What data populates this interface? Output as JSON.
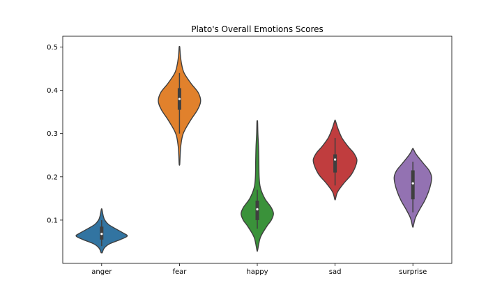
{
  "chart_data": {
    "type": "violin",
    "title": "Plato's Overall Emotions Scores",
    "xlabel": "",
    "ylabel": "",
    "categories": [
      "anger",
      "fear",
      "happy",
      "sad",
      "surprise"
    ],
    "ylim": [
      0.0,
      0.525
    ],
    "yticks": [
      0.1,
      0.2,
      0.3,
      0.4,
      0.5
    ],
    "grid": false,
    "colors": [
      "#3274a1",
      "#e1812c",
      "#3a923a",
      "#c03d3e",
      "#9372b2"
    ],
    "series": [
      {
        "category": "anger",
        "min": 0.025,
        "q1": 0.055,
        "median": 0.068,
        "q3": 0.085,
        "max": 0.125,
        "whisker_low": 0.04,
        "whisker_high": 0.1,
        "density": [
          [
            0.025,
            0.02
          ],
          [
            0.035,
            0.08
          ],
          [
            0.045,
            0.25
          ],
          [
            0.055,
            0.6
          ],
          [
            0.063,
            0.82
          ],
          [
            0.07,
            0.7
          ],
          [
            0.08,
            0.45
          ],
          [
            0.09,
            0.22
          ],
          [
            0.1,
            0.1
          ],
          [
            0.11,
            0.05
          ],
          [
            0.125,
            0.01
          ]
        ]
      },
      {
        "category": "fear",
        "min": 0.23,
        "q1": 0.355,
        "median": 0.38,
        "q3": 0.405,
        "max": 0.5,
        "whisker_low": 0.3,
        "whisker_high": 0.44,
        "density": [
          [
            0.23,
            0.01
          ],
          [
            0.27,
            0.04
          ],
          [
            0.3,
            0.12
          ],
          [
            0.33,
            0.35
          ],
          [
            0.355,
            0.58
          ],
          [
            0.375,
            0.68
          ],
          [
            0.395,
            0.6
          ],
          [
            0.415,
            0.38
          ],
          [
            0.44,
            0.15
          ],
          [
            0.46,
            0.07
          ],
          [
            0.48,
            0.03
          ],
          [
            0.5,
            0.01
          ]
        ]
      },
      {
        "category": "happy",
        "min": 0.03,
        "q1": 0.1,
        "median": 0.125,
        "q3": 0.145,
        "max": 0.328,
        "whisker_low": 0.08,
        "whisker_high": 0.17,
        "density": [
          [
            0.03,
            0.01
          ],
          [
            0.06,
            0.1
          ],
          [
            0.085,
            0.3
          ],
          [
            0.1,
            0.45
          ],
          [
            0.115,
            0.52
          ],
          [
            0.13,
            0.44
          ],
          [
            0.15,
            0.24
          ],
          [
            0.175,
            0.1
          ],
          [
            0.2,
            0.06
          ],
          [
            0.24,
            0.05
          ],
          [
            0.27,
            0.04
          ],
          [
            0.3,
            0.02
          ],
          [
            0.328,
            0.01
          ]
        ]
      },
      {
        "category": "sad",
        "min": 0.148,
        "q1": 0.21,
        "median": 0.24,
        "q3": 0.252,
        "max": 0.33,
        "whisker_low": 0.18,
        "whisker_high": 0.29,
        "density": [
          [
            0.148,
            0.01
          ],
          [
            0.165,
            0.08
          ],
          [
            0.185,
            0.28
          ],
          [
            0.205,
            0.52
          ],
          [
            0.225,
            0.66
          ],
          [
            0.24,
            0.7
          ],
          [
            0.255,
            0.6
          ],
          [
            0.27,
            0.42
          ],
          [
            0.29,
            0.22
          ],
          [
            0.31,
            0.1
          ],
          [
            0.33,
            0.01
          ]
        ]
      },
      {
        "category": "surprise",
        "min": 0.085,
        "q1": 0.148,
        "median": 0.185,
        "q3": 0.215,
        "max": 0.265,
        "whisker_low": 0.118,
        "whisker_high": 0.235,
        "density": [
          [
            0.085,
            0.01
          ],
          [
            0.105,
            0.08
          ],
          [
            0.125,
            0.22
          ],
          [
            0.145,
            0.38
          ],
          [
            0.165,
            0.5
          ],
          [
            0.185,
            0.58
          ],
          [
            0.2,
            0.6
          ],
          [
            0.215,
            0.52
          ],
          [
            0.23,
            0.35
          ],
          [
            0.245,
            0.18
          ],
          [
            0.255,
            0.08
          ],
          [
            0.265,
            0.01
          ]
        ]
      }
    ]
  }
}
